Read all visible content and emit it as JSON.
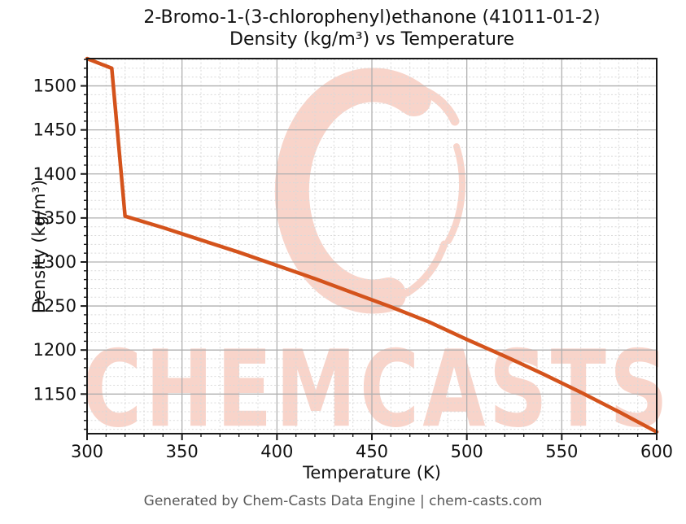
{
  "title": {
    "line1": "2-Bromo-1-(3-chlorophenyl)ethanone (41011-01-2)",
    "line2": "Density (kg/m³) vs Temperature"
  },
  "footer": "Generated by Chem-Casts Data Engine | chem-casts.com",
  "watermark": {
    "text": "CHEMCASTS"
  },
  "colors": {
    "line": "#d4531c",
    "grid_major": "#b0b0b0",
    "grid_minor": "#d9d9d9",
    "spine": "#1a1a1a",
    "tick_label": "#111111",
    "watermark": "#f8d4ca",
    "footer_text": "#595959"
  },
  "chart_data": {
    "type": "line",
    "title": "2-Bromo-1-(3-chlorophenyl)ethanone (41011-01-2) — Density (kg/m³) vs Temperature",
    "xlabel": "Temperature (K)",
    "ylabel": "Density (kg/m³)",
    "xlim": [
      300,
      600
    ],
    "ylim": [
      1105,
      1531
    ],
    "x_major_ticks": [
      300,
      350,
      400,
      450,
      500,
      550,
      600
    ],
    "y_major_ticks": [
      1150,
      1200,
      1250,
      1300,
      1350,
      1400,
      1450,
      1500
    ],
    "minor_tick_step_x": 10,
    "minor_tick_step_y": 10,
    "grid": "major solid + minor dashed",
    "legend": "none",
    "series": [
      {
        "name": "Density (kg/m³)",
        "x": [
          300,
          313,
          320,
          340,
          360,
          380,
          400,
          420,
          440,
          460,
          480,
          500,
          520,
          540,
          560,
          580,
          600
        ],
        "y": [
          1531,
          1520,
          1352,
          1339,
          1325,
          1311,
          1296,
          1281,
          1265,
          1249,
          1232,
          1212,
          1193,
          1173,
          1152,
          1130,
          1107
        ]
      }
    ]
  }
}
